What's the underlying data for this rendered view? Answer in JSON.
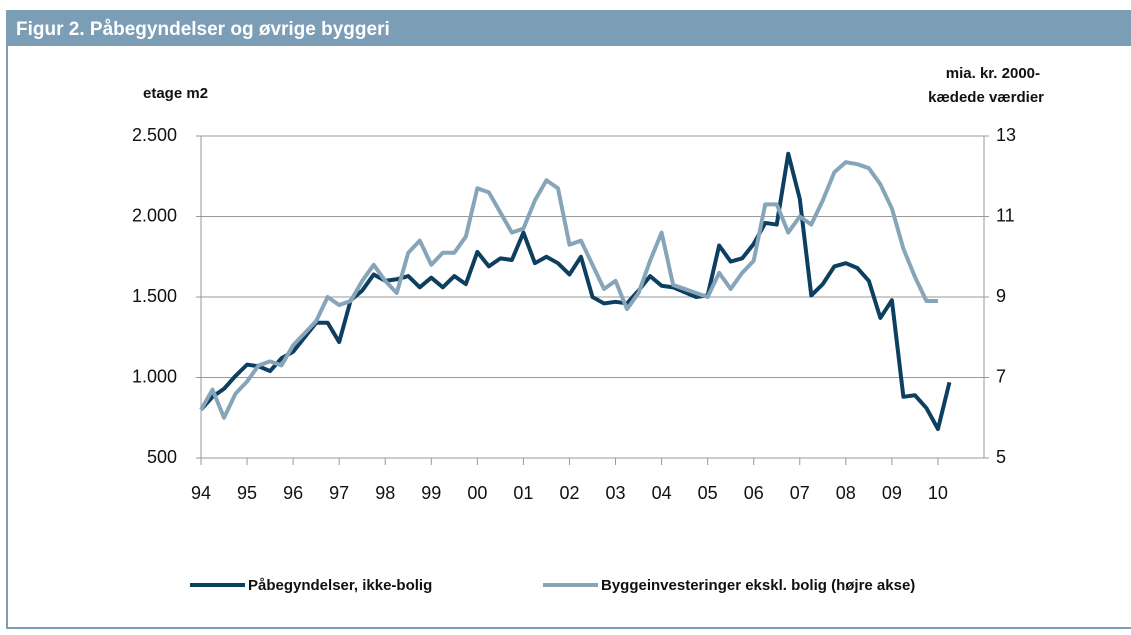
{
  "chart_data": {
    "type": "line",
    "title": "Figur 2. Påbegyndelser og øvrige byggeri",
    "ylabel": "etage m2",
    "y2label": [
      "mia. kr. 2000-",
      "kædede værdier"
    ],
    "x": [
      1994,
      1994.25,
      1994.5,
      1994.75,
      1995,
      1995.25,
      1995.5,
      1995.75,
      1996,
      1996.25,
      1996.5,
      1996.75,
      1997,
      1997.25,
      1997.5,
      1997.75,
      1998,
      1998.25,
      1998.5,
      1998.75,
      1999,
      1999.25,
      1999.5,
      1999.75,
      2000,
      2000.25,
      2000.5,
      2000.75,
      2001,
      2001.25,
      2001.5,
      2001.75,
      2002,
      2002.25,
      2002.5,
      2002.75,
      2003,
      2003.25,
      2003.5,
      2003.75,
      2004,
      2004.25,
      2004.5,
      2004.75,
      2005,
      2005.25,
      2005.5,
      2005.75,
      2006,
      2006.25,
      2006.5,
      2006.75,
      2007,
      2007.25,
      2007.5,
      2007.75,
      2008,
      2008.25,
      2008.5,
      2008.75,
      2009,
      2009.25,
      2009.5,
      2009.75,
      2010,
      2010.25
    ],
    "series": [
      {
        "name": "Påbegyndelser, ikke-bolig",
        "color": "#0d3f60",
        "values": [
          800,
          880,
          930,
          1010,
          1080,
          1070,
          1040,
          1120,
          1160,
          1250,
          1340,
          1340,
          1220,
          1480,
          1540,
          1640,
          1600,
          1610,
          1630,
          1560,
          1620,
          1560,
          1630,
          1580,
          1780,
          1690,
          1740,
          1730,
          1900,
          1710,
          1750,
          1710,
          1640,
          1750,
          1500,
          1460,
          1470,
          1460,
          1540,
          1630,
          1570,
          1560,
          1530,
          1500,
          1510,
          1820,
          1720,
          1740,
          1830,
          1960,
          1950,
          2390,
          2110,
          1510,
          1580,
          1690,
          1710,
          1680,
          1600,
          1370,
          1480,
          880,
          890,
          810,
          680,
          970
        ]
      },
      {
        "name": "Byggeinvesteringer ekskl. bolig (højre akse)",
        "color": "#87a5b9",
        "axis": "y2",
        "values": [
          6.2,
          6.7,
          6.0,
          6.6,
          6.9,
          7.3,
          7.4,
          7.3,
          7.8,
          8.1,
          8.4,
          9.0,
          8.8,
          8.9,
          9.4,
          9.8,
          9.4,
          9.1,
          10.1,
          10.4,
          9.8,
          10.1,
          10.1,
          10.5,
          11.7,
          11.6,
          11.1,
          10.6,
          10.7,
          11.4,
          11.9,
          11.7,
          10.3,
          10.4,
          9.8,
          9.2,
          9.4,
          8.7,
          9.1,
          9.9,
          10.6,
          9.3,
          9.2,
          9.1,
          9.0,
          9.6,
          9.2,
          9.6,
          9.9,
          11.3,
          11.3,
          10.6,
          11.0,
          10.8,
          11.4,
          12.1,
          12.35,
          12.3,
          12.2,
          11.8,
          11.2,
          10.2,
          9.5,
          8.9,
          8.9,
          null
        ]
      }
    ],
    "xlim": [
      1994,
      2011
    ],
    "xticks": [
      {
        "value": 1994,
        "label": "94"
      },
      {
        "value": 1995,
        "label": "95"
      },
      {
        "value": 1996,
        "label": "96"
      },
      {
        "value": 1997,
        "label": "97"
      },
      {
        "value": 1998,
        "label": "98"
      },
      {
        "value": 1999,
        "label": "99"
      },
      {
        "value": 2000,
        "label": "00"
      },
      {
        "value": 2001,
        "label": "01"
      },
      {
        "value": 2002,
        "label": "02"
      },
      {
        "value": 2003,
        "label": "03"
      },
      {
        "value": 2004,
        "label": "04"
      },
      {
        "value": 2005,
        "label": "05"
      },
      {
        "value": 2006,
        "label": "06"
      },
      {
        "value": 2007,
        "label": "07"
      },
      {
        "value": 2008,
        "label": "08"
      },
      {
        "value": 2009,
        "label": "09"
      },
      {
        "value": 2010,
        "label": "10"
      }
    ],
    "ylim": [
      500,
      2500
    ],
    "yticks": [
      500,
      {
        "value": 1000,
        "label": "1.000"
      },
      {
        "value": 1500,
        "label": "1.500"
      },
      {
        "value": 2000,
        "label": "2.000"
      },
      {
        "value": 2500,
        "label": "2.500"
      }
    ],
    "y2lim": [
      5,
      13
    ],
    "y2ticks": [
      5,
      7,
      9,
      11,
      13
    ],
    "grid": true,
    "legend": "bottom"
  }
}
